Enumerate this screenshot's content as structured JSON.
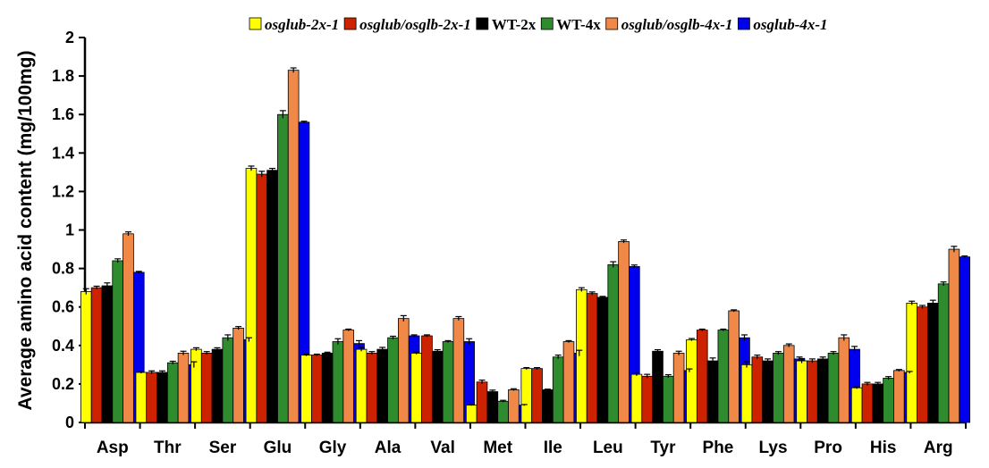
{
  "chart_data": {
    "type": "bar",
    "title": "",
    "xlabel": "",
    "ylabel": "Average amino acid content (mg/100mg)",
    "ylim": [
      0,
      2
    ],
    "yticks": [
      "0",
      "0.2",
      "0.4",
      "0.6",
      "0.8",
      "1",
      "1.2",
      "1.4",
      "1.6",
      "1.8",
      "2"
    ],
    "grid": false,
    "legend_position": "top",
    "categories": [
      "Asp",
      "Thr",
      "Ser",
      "Glu",
      "Gly",
      "Ala",
      "Val",
      "Met",
      "Ile",
      "Leu",
      "Tyr",
      "Phe",
      "Lys",
      "Pro",
      "His",
      "Arg"
    ],
    "series": [
      {
        "name": "osglub-2x-1",
        "italic": true,
        "color": "#ffff00",
        "values": [
          0.68,
          0.26,
          0.38,
          1.32,
          0.35,
          0.38,
          0.36,
          0.09,
          0.28,
          0.69,
          0.25,
          0.43,
          0.3,
          0.32,
          0.18,
          0.62
        ],
        "errors": [
          0.015,
          0.005,
          0.008,
          0.012,
          0.005,
          0.01,
          0.006,
          0.003,
          0.005,
          0.01,
          0.008,
          0.006,
          0.015,
          0.012,
          0.005,
          0.01
        ]
      },
      {
        "name": "osglub/osglb-2x-1",
        "italic": true,
        "color": "#cc2200",
        "values": [
          0.7,
          0.26,
          0.36,
          1.29,
          0.35,
          0.36,
          0.45,
          0.21,
          0.28,
          0.67,
          0.24,
          0.48,
          0.34,
          0.32,
          0.2,
          0.6
        ],
        "errors": [
          0.008,
          0.008,
          0.008,
          0.015,
          0.005,
          0.008,
          0.005,
          0.01,
          0.005,
          0.008,
          0.01,
          0.005,
          0.01,
          0.01,
          0.008,
          0.008
        ]
      },
      {
        "name": "WT-2x",
        "italic": false,
        "color": "#000000",
        "values": [
          0.71,
          0.26,
          0.38,
          1.31,
          0.36,
          0.38,
          0.37,
          0.16,
          0.17,
          0.65,
          0.37,
          0.32,
          0.32,
          0.33,
          0.2,
          0.62
        ],
        "errors": [
          0.015,
          0.008,
          0.008,
          0.01,
          0.005,
          0.01,
          0.008,
          0.008,
          0.003,
          0.005,
          0.008,
          0.015,
          0.01,
          0.01,
          0.008,
          0.015
        ]
      },
      {
        "name": "WT-4x",
        "italic": false,
        "color": "#2e8b2e",
        "values": [
          0.84,
          0.31,
          0.44,
          1.6,
          0.42,
          0.44,
          0.42,
          0.11,
          0.34,
          0.82,
          0.24,
          0.48,
          0.36,
          0.36,
          0.23,
          0.72
        ],
        "errors": [
          0.01,
          0.008,
          0.015,
          0.02,
          0.015,
          0.008,
          0.005,
          0.005,
          0.01,
          0.015,
          0.008,
          0.005,
          0.008,
          0.008,
          0.008,
          0.01
        ]
      },
      {
        "name": "osglub/osglb-4x-1",
        "italic": true,
        "color": "#f08848",
        "values": [
          0.98,
          0.36,
          0.49,
          1.83,
          0.48,
          0.54,
          0.54,
          0.17,
          0.42,
          0.94,
          0.36,
          0.58,
          0.4,
          0.44,
          0.27,
          0.9
        ],
        "errors": [
          0.01,
          0.01,
          0.008,
          0.012,
          0.005,
          0.015,
          0.01,
          0.005,
          0.005,
          0.008,
          0.01,
          0.005,
          0.008,
          0.015,
          0.005,
          0.015
        ]
      },
      {
        "name": "osglub-4x-1",
        "italic": true,
        "color": "#0000ee",
        "values": [
          0.78,
          0.3,
          0.43,
          1.56,
          0.41,
          0.45,
          0.42,
          0.09,
          0.36,
          0.81,
          0.27,
          0.44,
          0.33,
          0.38,
          0.26,
          0.86
        ],
        "errors": [
          0.005,
          0.015,
          0.01,
          0.005,
          0.015,
          0.005,
          0.015,
          0.003,
          0.015,
          0.008,
          0.008,
          0.015,
          0.01,
          0.015,
          0.005,
          0.005
        ]
      }
    ]
  }
}
